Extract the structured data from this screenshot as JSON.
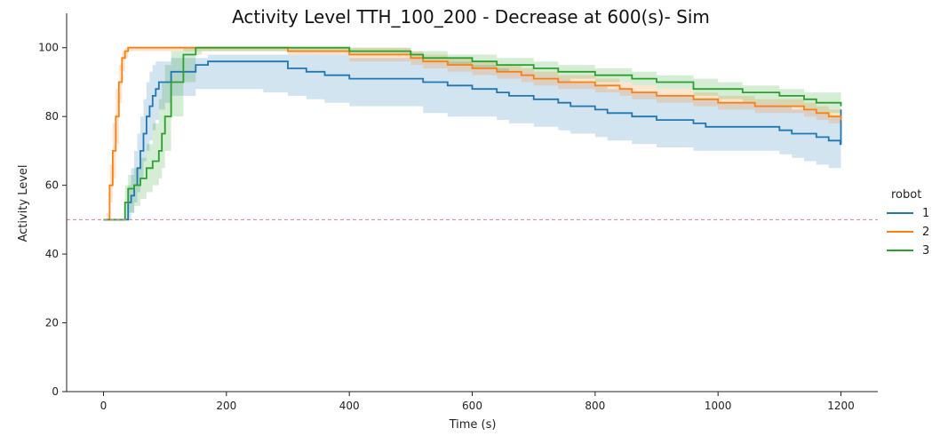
{
  "chart_data": {
    "type": "line",
    "title": "Activity Level TTH_100_200 - Decrease at 600(s)- Sim",
    "xlabel": "Time (s)",
    "ylabel": "Activity Level",
    "xlim": [
      -60,
      1260
    ],
    "ylim": [
      0,
      110
    ],
    "xticks": [
      0,
      200,
      400,
      600,
      800,
      1000,
      1200
    ],
    "yticks": [
      0,
      20,
      40,
      60,
      80,
      100
    ],
    "reference_line": {
      "y": 50,
      "color": "#e07ba2",
      "style": "dashed"
    },
    "legend": {
      "title": "robot",
      "placement": "right"
    },
    "series": [
      {
        "name": "1",
        "color": "#1f77b4",
        "x": [
          0,
          35,
          40,
          45,
          50,
          55,
          60,
          65,
          70,
          75,
          80,
          85,
          90,
          100,
          110,
          150,
          160,
          170,
          180,
          200,
          210,
          260,
          300,
          320,
          330,
          340,
          360,
          380,
          400,
          480,
          520,
          560,
          600,
          640,
          660,
          700,
          740,
          760,
          800,
          820,
          840,
          860,
          880,
          900,
          920,
          960,
          980,
          1000,
          1040,
          1100,
          1120,
          1140,
          1160,
          1180,
          1199,
          1200
        ],
        "y": [
          50,
          50,
          55,
          57,
          60,
          65,
          70,
          75,
          80,
          83,
          86,
          88,
          90,
          90,
          93,
          95,
          95,
          96,
          96,
          96,
          96,
          96,
          94,
          94,
          93,
          93,
          92,
          92,
          91,
          91,
          90,
          89,
          88,
          87,
          86,
          85,
          84,
          83,
          82,
          81,
          81,
          80,
          80,
          79,
          79,
          78,
          77,
          77,
          77,
          76,
          75,
          75,
          74,
          73,
          72,
          82
        ],
        "lower": [
          50,
          50,
          50,
          52,
          55,
          58,
          62,
          67,
          70,
          73,
          76,
          79,
          82,
          84,
          86,
          88,
          88,
          88,
          88,
          88,
          88,
          87,
          86,
          86,
          85,
          85,
          84,
          84,
          83,
          83,
          81,
          80,
          80,
          79,
          78,
          77,
          76,
          75,
          74,
          73,
          73,
          72,
          72,
          71,
          71,
          70,
          70,
          70,
          70,
          69,
          68,
          67,
          66,
          65,
          65,
          66
        ],
        "upper": [
          50,
          50,
          60,
          65,
          70,
          75,
          80,
          85,
          90,
          93,
          95,
          96,
          96,
          96,
          97,
          97,
          97,
          98,
          98,
          98,
          98,
          98,
          98,
          98,
          98,
          98,
          98,
          98,
          97,
          97,
          96,
          96,
          95,
          94,
          93,
          92,
          91,
          90,
          89,
          88,
          88,
          87,
          87,
          86,
          86,
          85,
          85,
          84,
          84,
          83,
          82,
          82,
          81,
          80,
          80,
          80
        ]
      },
      {
        "name": "2",
        "color": "#ff7f0e",
        "x": [
          0,
          5,
          10,
          15,
          20,
          25,
          30,
          35,
          40,
          50,
          60,
          100,
          160,
          200,
          300,
          320,
          400,
          500,
          520,
          560,
          600,
          640,
          680,
          700,
          740,
          760,
          800,
          840,
          860,
          900,
          920,
          960,
          1000,
          1020,
          1060,
          1100,
          1140,
          1160,
          1180,
          1200
        ],
        "y": [
          50,
          50,
          60,
          70,
          80,
          90,
          97,
          99,
          100,
          100,
          100,
          100,
          100,
          100,
          99,
          99,
          98,
          97,
          96,
          95,
          94,
          93,
          92,
          91,
          90,
          90,
          89,
          88,
          87,
          86,
          86,
          85,
          84,
          84,
          83,
          83,
          82,
          81,
          80,
          79
        ],
        "lower": [
          50,
          50,
          55,
          62,
          72,
          84,
          93,
          97,
          99,
          99,
          99,
          99,
          99,
          99,
          98,
          98,
          96,
          95,
          94,
          93,
          92,
          91,
          90,
          89,
          88,
          88,
          87,
          86,
          85,
          84,
          84,
          83,
          82,
          82,
          81,
          81,
          80,
          79,
          78,
          77
        ],
        "upper": [
          50,
          52,
          66,
          78,
          88,
          95,
          99,
          100,
          100,
          100,
          100,
          100,
          100,
          100,
          100,
          100,
          100,
          99,
          98,
          97,
          96,
          95,
          94,
          93,
          92,
          92,
          91,
          90,
          89,
          88,
          88,
          87,
          86,
          86,
          85,
          85,
          84,
          83,
          82,
          81
        ]
      },
      {
        "name": "3",
        "color": "#2ca02c",
        "x": [
          0,
          30,
          35,
          40,
          50,
          60,
          70,
          80,
          90,
          95,
          100,
          110,
          130,
          150,
          160,
          200,
          300,
          400,
          450,
          500,
          520,
          560,
          600,
          640,
          700,
          740,
          800,
          860,
          900,
          960,
          1000,
          1040,
          1100,
          1140,
          1160,
          1200
        ],
        "y": [
          50,
          50,
          55,
          59,
          60,
          62,
          65,
          67,
          70,
          75,
          80,
          90,
          98,
          100,
          100,
          100,
          100,
          99,
          99,
          98,
          97,
          97,
          96,
          95,
          94,
          93,
          92,
          91,
          90,
          88,
          88,
          87,
          86,
          85,
          84,
          83
        ],
        "lower": [
          50,
          50,
          50,
          52,
          54,
          56,
          58,
          60,
          62,
          65,
          70,
          80,
          90,
          98,
          99,
          99,
          99,
          98,
          98,
          97,
          96,
          95,
          94,
          93,
          92,
          91,
          90,
          89,
          88,
          86,
          85,
          84,
          83,
          82,
          81,
          80
        ],
        "upper": [
          50,
          50,
          60,
          63,
          65,
          68,
          72,
          78,
          85,
          90,
          95,
          99,
          100,
          100,
          100,
          100,
          100,
          100,
          100,
          99,
          99,
          98,
          98,
          97,
          96,
          95,
          94,
          93,
          92,
          91,
          90,
          89,
          88,
          87,
          87,
          86
        ]
      }
    ]
  }
}
